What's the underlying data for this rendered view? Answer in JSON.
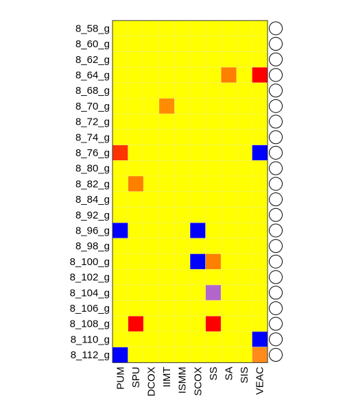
{
  "chart_data": {
    "type": "heatmap",
    "rows": [
      "8_58_g",
      "8_60_g",
      "8_62_g",
      "8_64_g",
      "8_68_g",
      "8_70_g",
      "8_72_g",
      "8_74_g",
      "8_76_g",
      "8_80_g",
      "8_82_g",
      "8_84_g",
      "8_92_g",
      "8_96_g",
      "8_98_g",
      "8_100_g",
      "8_102_g",
      "8_104_g",
      "8_106_g",
      "8_108_g",
      "8_110_g",
      "8_112_g"
    ],
    "columns": [
      "PUM",
      "SPU",
      "DCOX",
      "IIMT",
      "ISMM",
      "SCOX",
      "SS",
      "SA",
      "SIS",
      "VEAC"
    ],
    "background_color": "#ffff00",
    "cells": [
      {
        "row": "8_64_g",
        "col": "SA",
        "color": "#ff7f00"
      },
      {
        "row": "8_64_g",
        "col": "VEAC",
        "color": "#ff0000"
      },
      {
        "row": "8_70_g",
        "col": "IIMT",
        "color": "#ff8c00"
      },
      {
        "row": "8_76_g",
        "col": "PUM",
        "color": "#ff3300"
      },
      {
        "row": "8_76_g",
        "col": "VEAC",
        "color": "#0000ff"
      },
      {
        "row": "8_82_g",
        "col": "SPU",
        "color": "#ff7f00"
      },
      {
        "row": "8_96_g",
        "col": "PUM",
        "color": "#0000ff"
      },
      {
        "row": "8_96_g",
        "col": "SCOX",
        "color": "#0000ff"
      },
      {
        "row": "8_100_g",
        "col": "SCOX",
        "color": "#0000ff"
      },
      {
        "row": "8_100_g",
        "col": "SS",
        "color": "#ff7f00"
      },
      {
        "row": "8_104_g",
        "col": "SS",
        "color": "#b266cc"
      },
      {
        "row": "8_108_g",
        "col": "SPU",
        "color": "#ff0000"
      },
      {
        "row": "8_108_g",
        "col": "SS",
        "color": "#ff0000"
      },
      {
        "row": "8_110_g",
        "col": "VEAC",
        "color": "#0000ff"
      },
      {
        "row": "8_112_g",
        "col": "PUM",
        "color": "#0000ff"
      },
      {
        "row": "8_112_g",
        "col": "VEAC",
        "color": "#ff8c1a"
      }
    ],
    "row_markers": "circle"
  }
}
